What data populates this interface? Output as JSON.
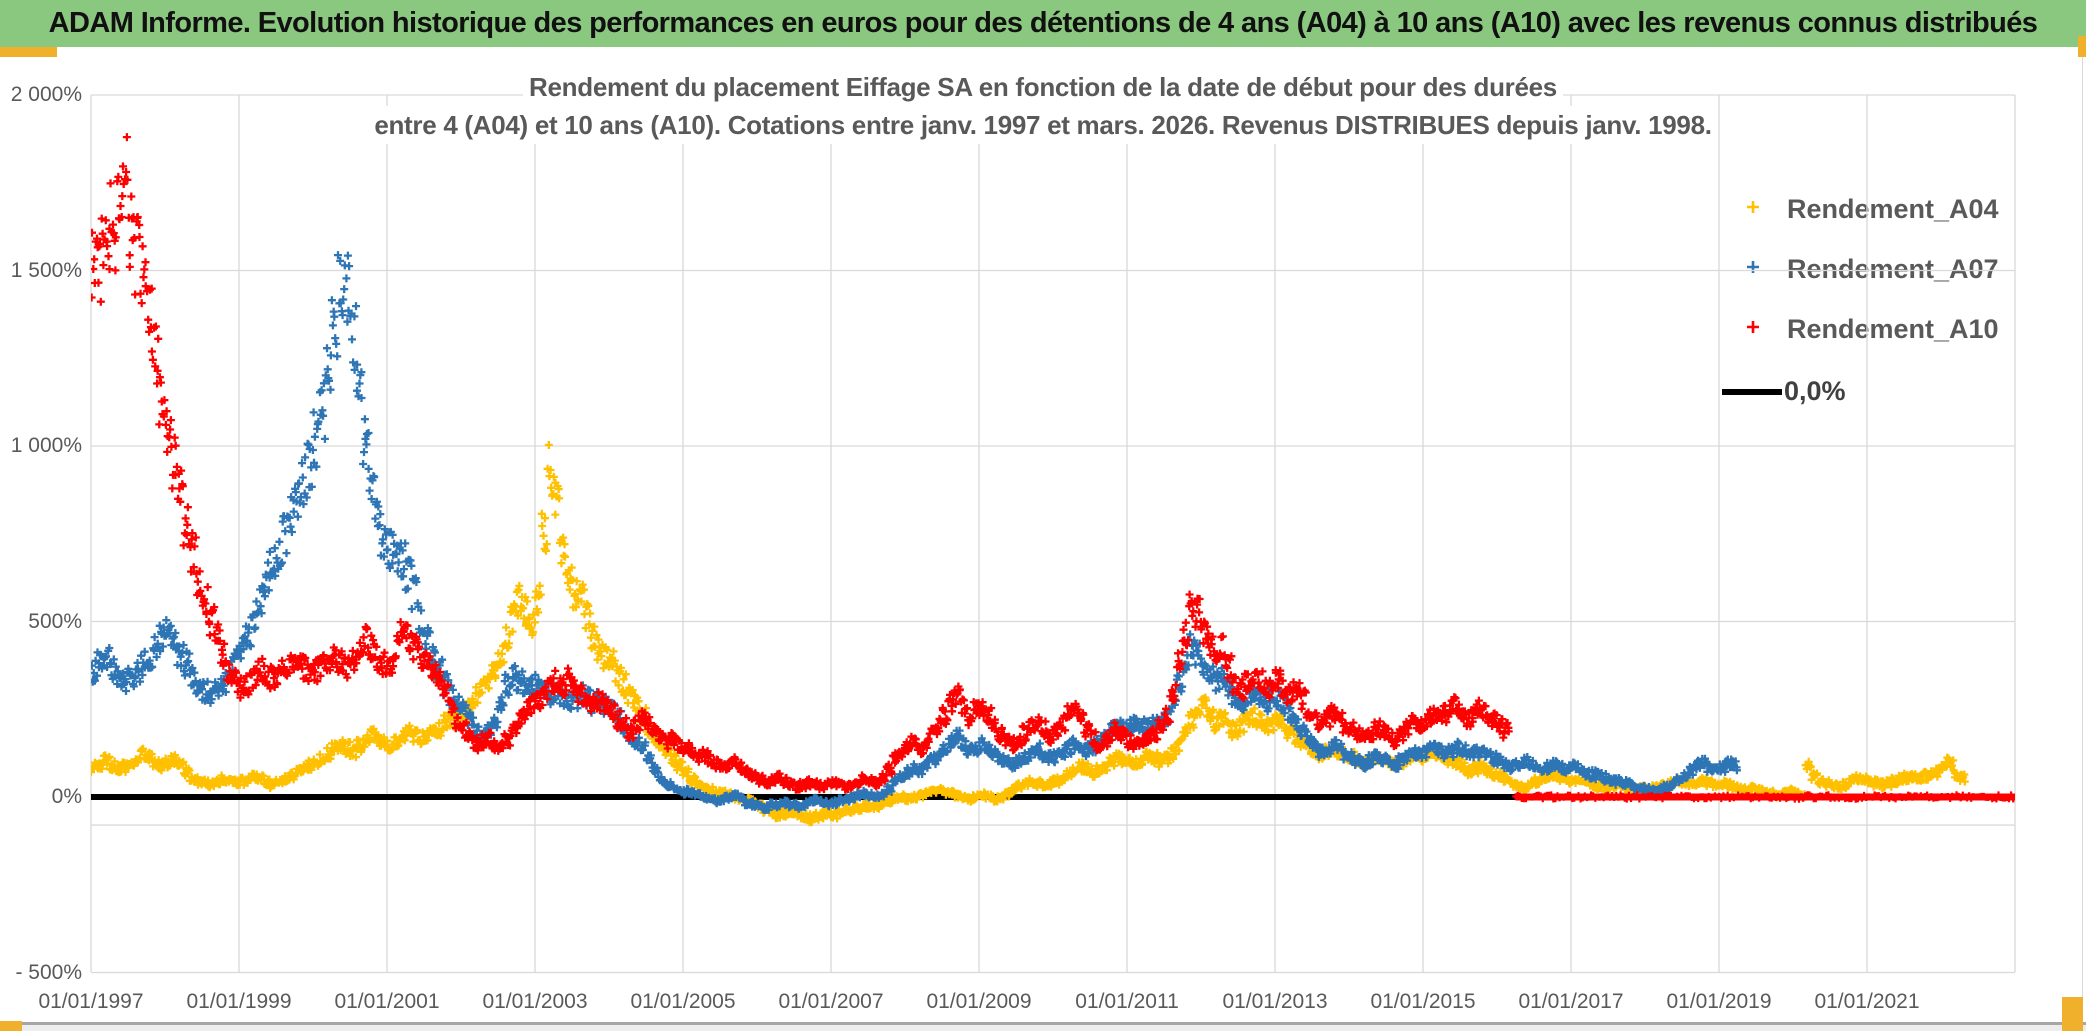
{
  "header": {
    "title": "ADAM Informe. Evolution historique des performances en euros pour des détentions de 4 ans (A04) à 10 ans (A10) avec les revenus connus distribués",
    "bg_color": "#8bc87f",
    "accent_color": "#f0b02c",
    "text_color": "#111111"
  },
  "chart_data": {
    "type": "scatter",
    "title_line1": "Rendement du placement Eiffage SA en fonction de la date de début pour des durées",
    "title_line2": "entre 4 (A04) et 10 ans (A10). Cotations entre janv. 1997 et mars. 2026. Revenus DISTRIBUES depuis janv. 1998.",
    "marker": "plus",
    "grid": true,
    "gridline_color": "#d9d9d9",
    "axis_text_color": "#595959",
    "xlim_years": [
      1997.0,
      2023.0
    ],
    "ylim_pct": [
      -500,
      2000
    ],
    "extra_axis_line_y_pct": -80,
    "y_ticks": {
      "values_pct": [
        2000,
        1500,
        1000,
        500,
        0,
        -500
      ],
      "labels": [
        "2 000%",
        "1 500%",
        "1 000%",
        "500%",
        "0%",
        "- 500%"
      ]
    },
    "x_ticks": {
      "years": [
        1997,
        1999,
        2001,
        2003,
        2005,
        2007,
        2009,
        2011,
        2013,
        2015,
        2017,
        2019,
        2021
      ],
      "labels": [
        "01/01/1997",
        "01/01/1999",
        "01/01/2001",
        "01/01/2003",
        "01/01/2005",
        "01/01/2007",
        "01/01/2009",
        "01/01/2011",
        "01/01/2013",
        "01/01/2015",
        "01/01/2017",
        "01/01/2019",
        "01/01/2021"
      ]
    },
    "legend": [
      {
        "label": "Rendement_A04",
        "color": "#FFC000",
        "marker": "plus"
      },
      {
        "label": "Rendement_A07",
        "color": "#2E75B6",
        "marker": "plus"
      },
      {
        "label": "Rendement_A10",
        "color": "#FF0000",
        "marker": "plus"
      },
      {
        "label": "0,0%",
        "color": "#000000",
        "marker": "line"
      }
    ],
    "zero_line": {
      "value_pct": 0,
      "color": "#000000"
    },
    "series": [
      {
        "name": "Rendement_A04",
        "color": "#FFC000",
        "start_year": 1997.0,
        "step_months": 1,
        "values_pct": [
          85,
          95,
          105,
          90,
          80,
          85,
          95,
          110,
          125,
          115,
          100,
          90,
          95,
          105,
          90,
          70,
          55,
          45,
          40,
          35,
          40,
          50,
          45,
          40,
          45,
          50,
          55,
          50,
          40,
          35,
          40,
          50,
          60,
          70,
          80,
          90,
          100,
          110,
          125,
          140,
          150,
          140,
          130,
          145,
          160,
          175,
          165,
          155,
          150,
          160,
          175,
          185,
          175,
          165,
          170,
          180,
          195,
          210,
          220,
          230,
          240,
          260,
          285,
          310,
          330,
          360,
          400,
          450,
          510,
          560,
          530,
          500,
          560,
          750,
          930,
          860,
          700,
          640,
          580,
          560,
          520,
          450,
          420,
          400,
          390,
          350,
          320,
          290,
          265,
          230,
          190,
          160,
          140,
          130,
          110,
          90,
          70,
          50,
          35,
          25,
          20,
          15,
          10,
          5,
          0,
          -5,
          -10,
          -15,
          -25,
          -35,
          -45,
          -50,
          -45,
          -40,
          -45,
          -55,
          -60,
          -55,
          -50,
          -45,
          -50,
          -45,
          -40,
          -35,
          -30,
          -25,
          -30,
          -25,
          -15,
          -10,
          -5,
          0,
          -5,
          0,
          5,
          10,
          15,
          20,
          15,
          10,
          5,
          0,
          -5,
          0,
          5,
          0,
          -5,
          0,
          10,
          20,
          30,
          40,
          45,
          40,
          35,
          40,
          45,
          55,
          65,
          75,
          85,
          80,
          70,
          80,
          90,
          100,
          110,
          105,
          100,
          95,
          105,
          115,
          110,
          100,
          110,
          125,
          150,
          185,
          220,
          250,
          260,
          230,
          210,
          225,
          205,
          190,
          200,
          215,
          230,
          215,
          200,
          210,
          215,
          200,
          185,
          170,
          155,
          140,
          130,
          120,
          130,
          140,
          130,
          120,
          115,
          105,
          95,
          100,
          110,
          105,
          95,
          90,
          100,
          110,
          120,
          115,
          120,
          130,
          125,
          115,
          105,
          95,
          85,
          75,
          80,
          85,
          75,
          65,
          60,
          50,
          40,
          30,
          25,
          35,
          45,
          55,
          60,
          55,
          50,
          45,
          50,
          45,
          40,
          35,
          30,
          25,
          30,
          35,
          30,
          25,
          20,
          25,
          20,
          25,
          30,
          35,
          40,
          45,
          40,
          35,
          40,
          45,
          40,
          35,
          40,
          35,
          30,
          25,
          20,
          25,
          20,
          15,
          10,
          5,
          10,
          15,
          10,
          5,
          90,
          60,
          45,
          40,
          35,
          30,
          35,
          45,
          55,
          50,
          45,
          40,
          35,
          40,
          45,
          50,
          55,
          60,
          55,
          60,
          65,
          70,
          85,
          100,
          65,
          55
        ]
      },
      {
        "name": "Rendement_A07",
        "color": "#2E75B6",
        "start_year": 1997.0,
        "step_months": 1,
        "values_pct": [
          360,
          380,
          400,
          370,
          340,
          330,
          345,
          360,
          380,
          400,
          430,
          455,
          470,
          440,
          410,
          380,
          350,
          320,
          300,
          285,
          300,
          330,
          360,
          390,
          430,
          470,
          520,
          570,
          620,
          660,
          700,
          750,
          800,
          850,
          900,
          950,
          1020,
          1100,
          1200,
          1350,
          1480,
          1450,
          1300,
          1150,
          1000,
          880,
          780,
          720,
          700,
          690,
          670,
          640,
          580,
          510,
          450,
          400,
          360,
          320,
          290,
          270,
          250,
          220,
          190,
          170,
          185,
          220,
          270,
          320,
          345,
          330,
          310,
          320,
          330,
          310,
          290,
          300,
          285,
          270,
          280,
          295,
          280,
          265,
          275,
          260,
          245,
          225,
          200,
          180,
          160,
          140,
          110,
          80,
          50,
          35,
          25,
          20,
          15,
          10,
          5,
          0,
          -5,
          -10,
          -5,
          0,
          5,
          -5,
          -15,
          -20,
          -25,
          -30,
          -25,
          -20,
          -15,
          -20,
          -25,
          -20,
          -15,
          -10,
          -15,
          -20,
          -15,
          -10,
          -5,
          0,
          5,
          10,
          5,
          0,
          10,
          25,
          45,
          60,
          70,
          80,
          75,
          90,
          105,
          120,
          140,
          160,
          170,
          150,
          130,
          140,
          150,
          135,
          120,
          110,
          100,
          95,
          105,
          115,
          125,
          135,
          120,
          110,
          115,
          125,
          140,
          150,
          140,
          130,
          145,
          160,
          175,
          190,
          200,
          195,
          205,
          210,
          200,
          195,
          205,
          215,
          230,
          265,
          320,
          380,
          430,
          410,
          380,
          350,
          330,
          350,
          310,
          285,
          270,
          285,
          300,
          285,
          270,
          280,
          280,
          260,
          230,
          210,
          190,
          170,
          150,
          130,
          140,
          150,
          135,
          120,
          115,
          105,
          95,
          105,
          115,
          110,
          100,
          95,
          105,
          115,
          125,
          120,
          130,
          140,
          135,
          125,
          130,
          140,
          130,
          120,
          125,
          130,
          120,
          110,
          105,
          95,
          85,
          90,
          100,
          95,
          85,
          80,
          85,
          90,
          85,
          80,
          85,
          80,
          70,
          65,
          60,
          55,
          50,
          45,
          40,
          35,
          30,
          25,
          20,
          15,
          20,
          30,
          40,
          50,
          60,
          75,
          90,
          95,
          85,
          75,
          85,
          95,
          90
        ]
      },
      {
        "name": "Rendement_A10",
        "color": "#FF0000",
        "start_year": 1997.0,
        "step_months": 1,
        "flat_zero_from_year": 2016.25,
        "flat_zero_to_year": 2023.0,
        "values_pct": [
          1510,
          1530,
          1560,
          1620,
          1700,
          1850,
          1600,
          1550,
          1500,
          1350,
          1250,
          1150,
          1050,
          950,
          870,
          780,
          700,
          620,
          560,
          500,
          450,
          400,
          360,
          330,
          310,
          320,
          340,
          360,
          350,
          340,
          355,
          370,
          390,
          380,
          365,
          355,
          360,
          370,
          385,
          395,
          380,
          370,
          390,
          420,
          445,
          430,
          400,
          385,
          390,
          430,
          465,
          450,
          420,
          400,
          380,
          360,
          330,
          290,
          250,
          210,
          190,
          170,
          150,
          160,
          165,
          150,
          140,
          160,
          190,
          220,
          245,
          260,
          270,
          290,
          310,
          330,
          320,
          335,
          310,
          290,
          275,
          260,
          270,
          255,
          240,
          220,
          205,
          190,
          210,
          225,
          205,
          185,
          170,
          155,
          165,
          150,
          140,
          125,
          110,
          120,
          105,
          95,
          85,
          90,
          100,
          85,
          70,
          60,
          50,
          40,
          45,
          55,
          45,
          35,
          30,
          35,
          40,
          35,
          30,
          35,
          40,
          35,
          30,
          35,
          40,
          50,
          45,
          40,
          55,
          80,
          110,
          130,
          145,
          155,
          140,
          160,
          180,
          200,
          230,
          270,
          295,
          260,
          230,
          245,
          255,
          230,
          200,
          180,
          165,
          150,
          160,
          180,
          200,
          215,
          195,
          175,
          185,
          210,
          240,
          250,
          225,
          195,
          170,
          150,
          160,
          175,
          190,
          180,
          160,
          150,
          155,
          170,
          185,
          200,
          230,
          290,
          380,
          470,
          540,
          520,
          480,
          430,
          390,
          420,
          370,
          330,
          310,
          330,
          350,
          330,
          305,
          315,
          330,
          310,
          290,
          300,
          280,
          250,
          230,
          210,
          225,
          240,
          220,
          200,
          195,
          180,
          170,
          185,
          200,
          190,
          175,
          165,
          180,
          195,
          210,
          200,
          215,
          230,
          245,
          235,
          250,
          260,
          240,
          225,
          240,
          250,
          235,
          220,
          210,
          190
        ]
      }
    ]
  },
  "footer": {
    "band_color": "#ededed",
    "line_color": "#a6a6a6",
    "accent_color": "#f0b02c"
  }
}
